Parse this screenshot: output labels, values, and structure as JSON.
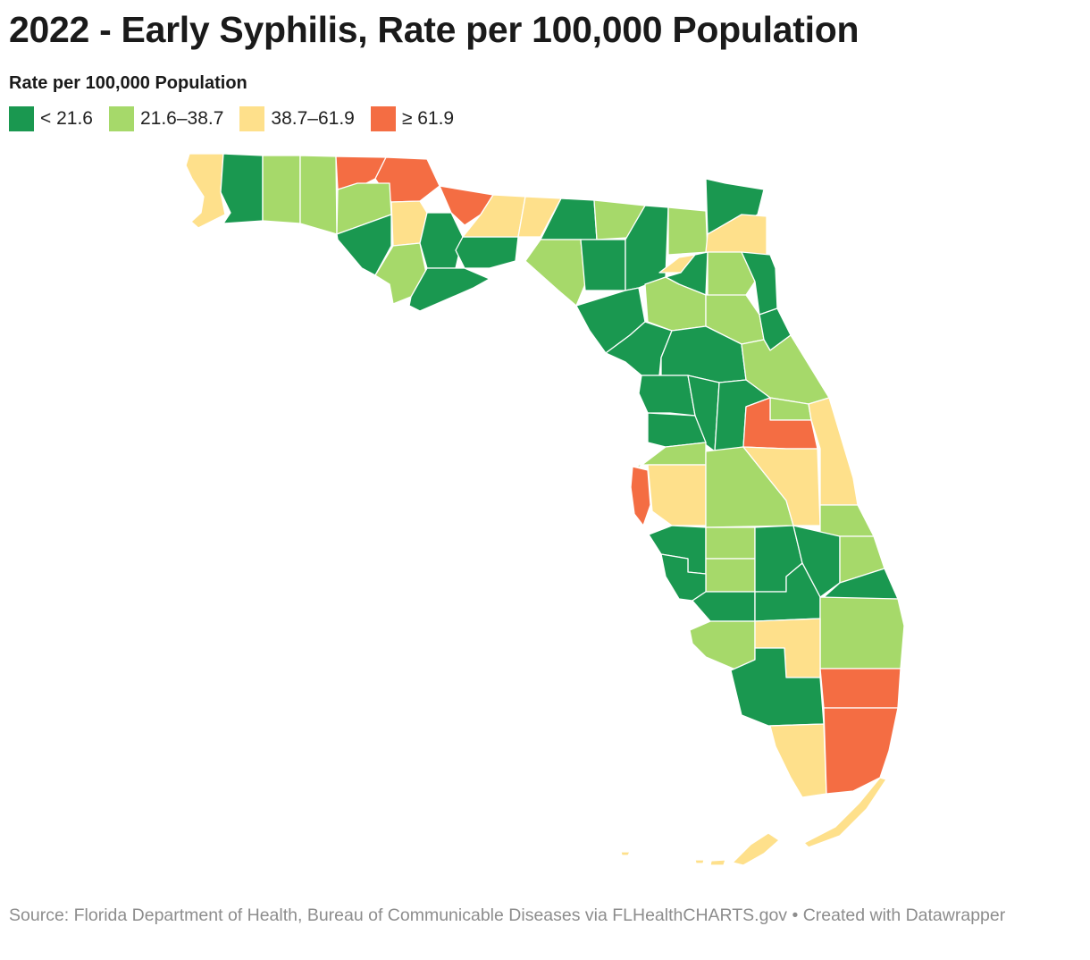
{
  "title": "2022 - Early Syphilis, Rate per 100,000 Population",
  "legend": {
    "title": "Rate per 100,000 Population",
    "items": [
      {
        "label": "< 21.6",
        "color": "#1a9850"
      },
      {
        "label": "21.6–38.7",
        "color": "#a6d96a"
      },
      {
        "label": "38.7–61.9",
        "color": "#fee08b"
      },
      {
        "label": "≥ 61.9",
        "color": "#f46d43"
      }
    ]
  },
  "colors": {
    "c1": "#1a9850",
    "c2": "#a6d96a",
    "c3": "#fee08b",
    "c4": "#f46d43"
  },
  "source": {
    "text": "Source: Florida Department of Health, Bureau of Communicable Diseases via FLHealthCHARTS.gov • Created with Datawrapper"
  }
}
